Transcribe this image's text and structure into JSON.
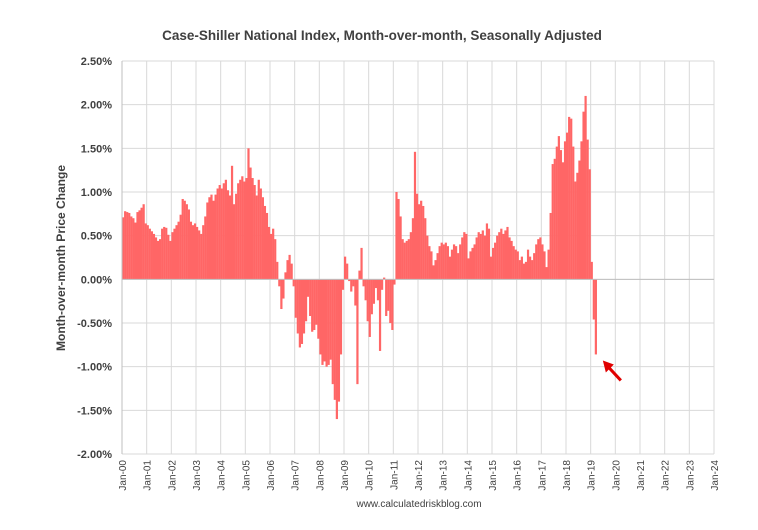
{
  "chart_data": {
    "type": "bar",
    "title": "Case-Shiller National Index, Month-over-month, Seasonally Adjusted",
    "ylabel": "Month-over-month Price Change",
    "xlabel": "",
    "source": "www.calculatedriskblog.com",
    "ylim": [
      -2.0,
      2.5
    ],
    "y_ticks": [
      "2.50%",
      "2.00%",
      "1.50%",
      "1.00%",
      "0.50%",
      "0.00%",
      "-0.50%",
      "-1.00%",
      "-1.50%",
      "-2.00%"
    ],
    "y_tick_values": [
      2.5,
      2.0,
      1.5,
      1.0,
      0.5,
      0.0,
      -0.5,
      -1.0,
      -1.5,
      -2.0
    ],
    "x_ticks": [
      "Jan-00",
      "Jan-01",
      "Jan-02",
      "Jan-03",
      "Jan-04",
      "Jan-05",
      "Jan-06",
      "Jan-07",
      "Jan-08",
      "Jan-09",
      "Jan-10",
      "Jan-11",
      "Jan-12",
      "Jan-13",
      "Jan-14",
      "Jan-15",
      "Jan-16",
      "Jan-17",
      "Jan-18",
      "Jan-19",
      "Jan-20",
      "Jan-21",
      "Jan-22",
      "Jan-23",
      "Jan-24"
    ],
    "grid": true,
    "bar_color": "#ff6666",
    "annotation": "red arrow pointing at latest negative bar",
    "annotation_color": "#e00000",
    "series": [
      {
        "values": [
          0.71,
          0.78,
          0.77,
          0.76,
          0.72,
          0.7,
          0.65,
          0.77,
          0.79,
          0.82,
          0.86,
          0.64,
          0.62,
          0.58,
          0.55,
          0.52,
          0.48,
          0.44,
          0.46,
          0.58,
          0.6,
          0.59,
          0.51,
          0.44,
          0.54,
          0.58,
          0.62,
          0.66,
          0.74,
          0.92,
          0.9,
          0.86,
          0.8,
          0.66,
          0.62,
          0.64,
          0.6,
          0.56,
          0.52,
          0.62,
          0.72,
          0.88,
          0.94,
          0.97,
          0.9,
          0.97,
          1.04,
          1.08,
          1.04,
          1.1,
          1.14,
          1.02,
          0.96,
          1.3,
          0.86,
          0.98,
          1.1,
          1.14,
          1.18,
          1.12,
          1.16,
          1.5,
          1.28,
          1.16,
          1.08,
          0.96,
          1.14,
          1.04,
          0.94,
          0.84,
          0.76,
          0.6,
          0.52,
          0.58,
          0.46,
          0.2,
          -0.08,
          -0.34,
          -0.22,
          0.08,
          0.22,
          0.28,
          0.18,
          -0.08,
          -0.44,
          -0.62,
          -0.78,
          -0.74,
          -0.62,
          -0.48,
          -0.2,
          -0.42,
          -0.6,
          -0.58,
          -0.52,
          -0.68,
          -0.86,
          -0.98,
          -0.94,
          -1.0,
          -0.98,
          -0.92,
          -1.2,
          -1.38,
          -1.6,
          -1.4,
          -0.86,
          -0.12,
          0.26,
          0.18,
          -0.02,
          -0.14,
          -0.08,
          -0.3,
          -1.2,
          0.1,
          0.36,
          -0.08,
          -0.24,
          -0.48,
          -0.66,
          -0.4,
          -0.28,
          -0.1,
          -0.24,
          -0.82,
          -0.12,
          0.02,
          -0.42,
          -0.36,
          -0.5,
          -0.58,
          -0.06,
          1.0,
          0.92,
          0.72,
          0.46,
          0.42,
          0.44,
          0.46,
          0.54,
          0.7,
          1.46,
          0.98,
          0.86,
          0.9,
          0.84,
          0.7,
          0.5,
          0.38,
          0.32,
          0.16,
          0.22,
          0.3,
          0.38,
          0.42,
          0.4,
          0.42,
          0.38,
          0.26,
          0.34,
          0.4,
          0.38,
          0.3,
          0.4,
          0.48,
          0.54,
          0.52,
          0.24,
          0.32,
          0.36,
          0.4,
          0.48,
          0.54,
          0.52,
          0.56,
          0.5,
          0.64,
          0.58,
          0.26,
          0.36,
          0.42,
          0.5,
          0.54,
          0.58,
          0.52,
          0.56,
          0.6,
          0.48,
          0.44,
          0.38,
          0.34,
          0.32,
          0.22,
          0.26,
          0.18,
          0.2,
          0.34,
          0.26,
          0.22,
          0.3,
          0.4,
          0.46,
          0.48,
          0.4,
          0.32,
          0.14,
          0.34,
          0.76,
          1.32,
          1.38,
          1.52,
          1.64,
          1.48,
          1.34,
          1.58,
          1.68,
          1.86,
          1.84,
          1.52,
          1.12,
          1.22,
          1.36,
          1.58,
          1.92,
          2.1,
          1.6,
          1.26,
          0.2,
          -0.46,
          -0.86
        ]
      }
    ]
  }
}
